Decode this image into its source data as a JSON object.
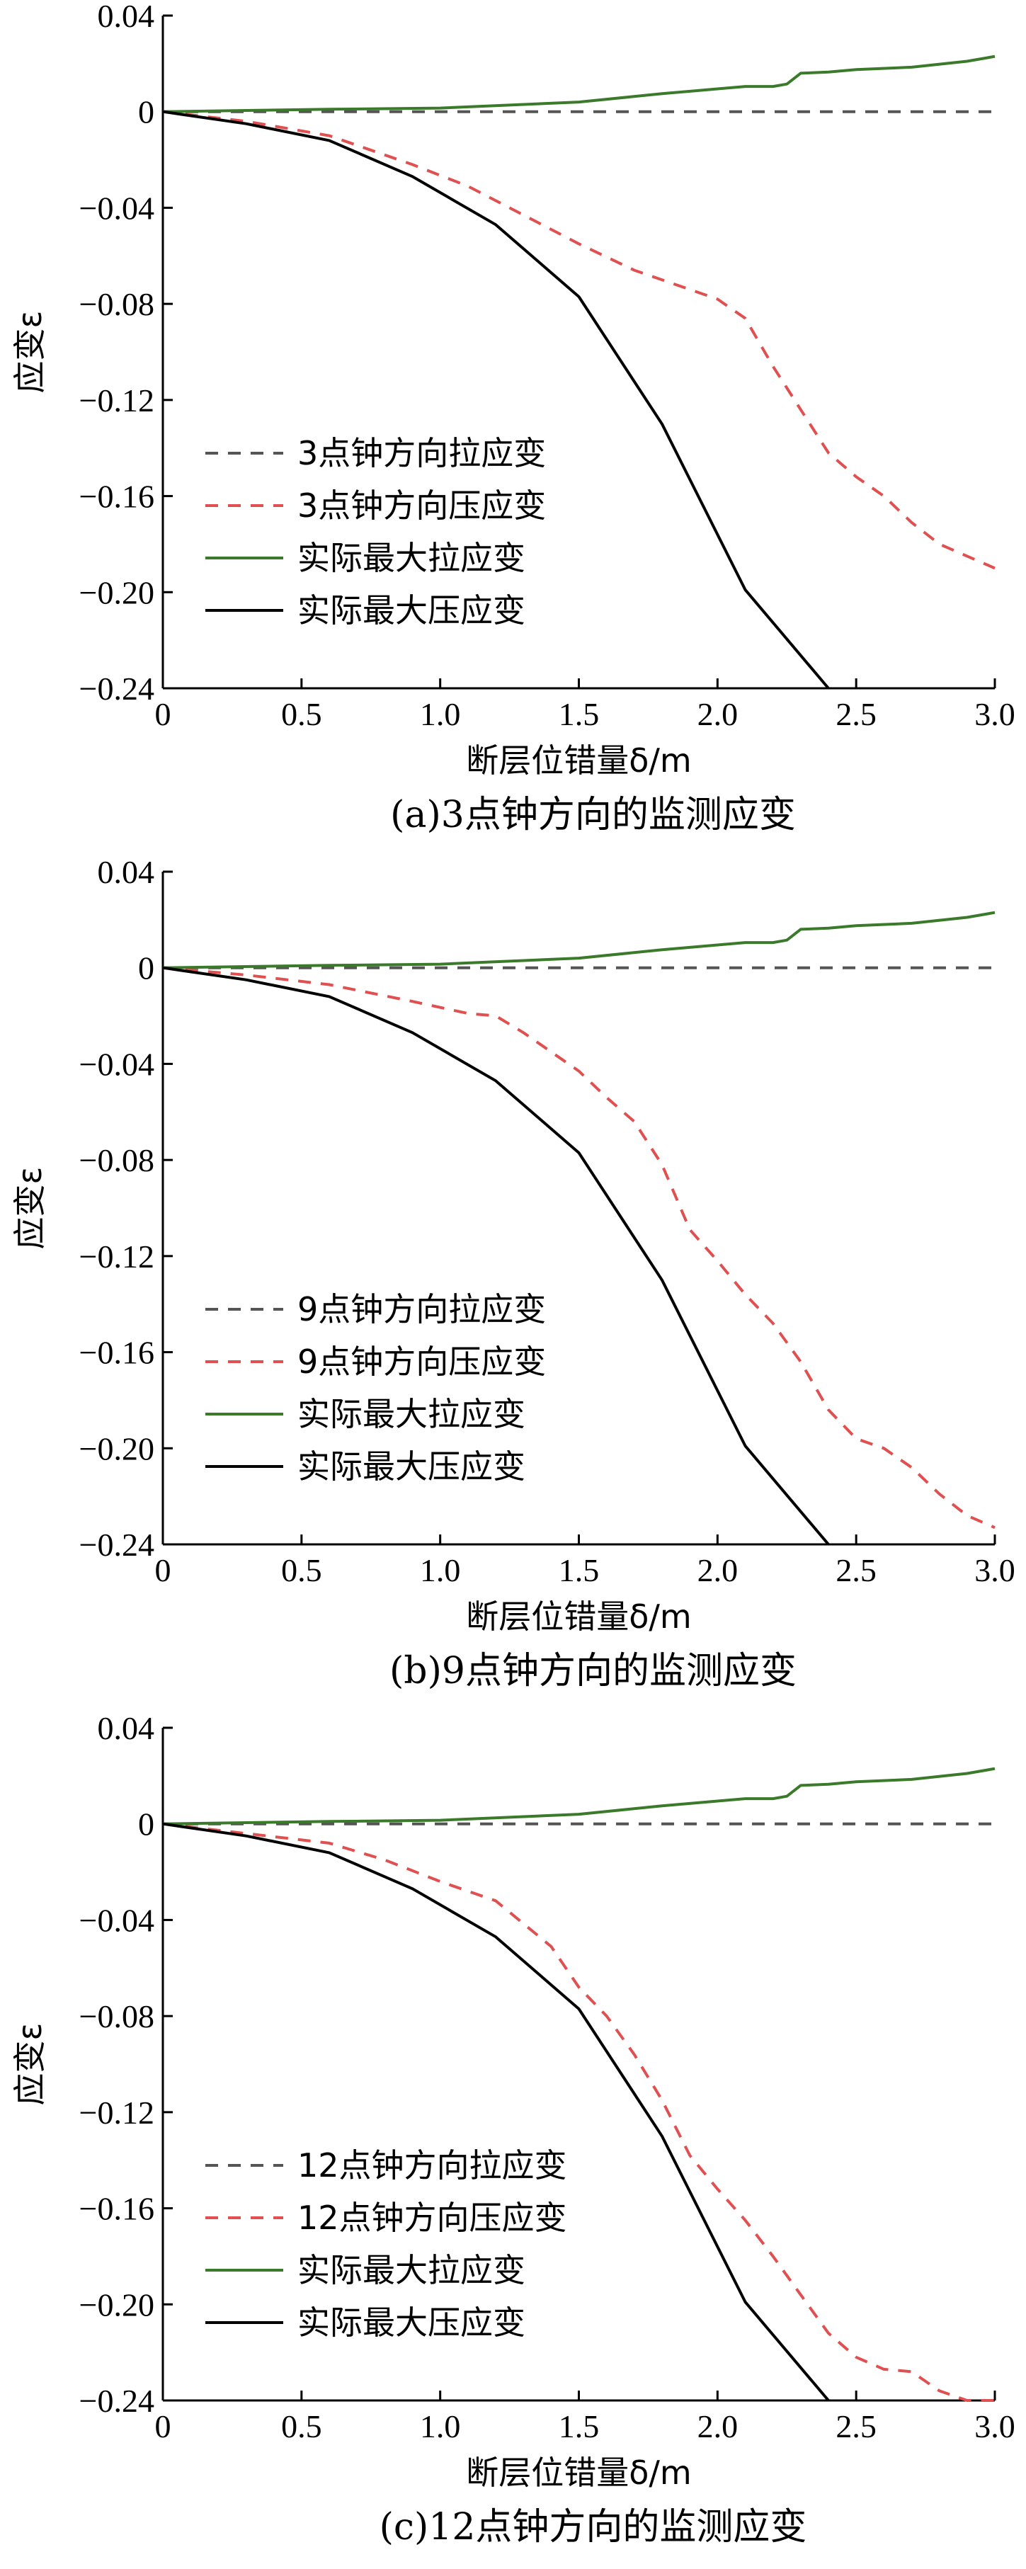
{
  "chart_data": [
    {
      "type": "line",
      "caption": "(a)3点钟方向的监测应变",
      "xlabel": "断层位错量δ/m",
      "ylabel": "应变ε",
      "xlim": [
        0,
        3.0
      ],
      "ylim": [
        -0.24,
        0.04
      ],
      "xticks": [
        "0",
        "0.5",
        "1.0",
        "1.5",
        "2.0",
        "2.5",
        "3.0"
      ],
      "yticks": [
        "0.04",
        "0",
        "−0.04",
        "−0.08",
        "−0.12",
        "−0.16",
        "−0.20",
        "−0.24"
      ],
      "legend_position": "lower-left",
      "series": [
        {
          "name": "3点钟方向拉应变",
          "color": "#555555",
          "style": "dashed",
          "x": [
            0,
            3.0
          ],
          "y": [
            0,
            0
          ]
        },
        {
          "name": "3点钟方向压应变",
          "color": "#e05050",
          "style": "dashed",
          "x": [
            0,
            0.3,
            0.6,
            0.9,
            1.1,
            1.3,
            1.5,
            1.7,
            1.9,
            2.0,
            2.1,
            2.2,
            2.3,
            2.4,
            2.5,
            2.6,
            2.7,
            2.8,
            2.9,
            3.0
          ],
          "y": [
            0,
            -0.004,
            -0.01,
            -0.022,
            -0.031,
            -0.043,
            -0.055,
            -0.066,
            -0.074,
            -0.078,
            -0.086,
            -0.106,
            -0.124,
            -0.142,
            -0.152,
            -0.16,
            -0.171,
            -0.18,
            -0.185,
            -0.19
          ]
        },
        {
          "name": "实际最大拉应变",
          "color": "#3a7a2a",
          "style": "solid",
          "x": [
            0,
            0.6,
            1.0,
            1.5,
            1.8,
            2.0,
            2.1,
            2.2,
            2.25,
            2.3,
            2.4,
            2.5,
            2.7,
            2.9,
            3.0
          ],
          "y": [
            0,
            0.001,
            0.0015,
            0.004,
            0.0075,
            0.0095,
            0.0105,
            0.0105,
            0.0115,
            0.016,
            0.0165,
            0.0175,
            0.0185,
            0.021,
            0.023
          ]
        },
        {
          "name": "实际最大压应变",
          "color": "#000000",
          "style": "solid",
          "x": [
            0,
            0.3,
            0.6,
            0.9,
            1.2,
            1.5,
            1.8,
            2.1,
            2.4
          ],
          "y": [
            0,
            -0.005,
            -0.012,
            -0.027,
            -0.047,
            -0.077,
            -0.13,
            -0.199,
            -0.24
          ]
        }
      ]
    },
    {
      "type": "line",
      "caption": "(b)9点钟方向的监测应变",
      "xlabel": "断层位错量δ/m",
      "ylabel": "应变ε",
      "xlim": [
        0,
        3.0
      ],
      "ylim": [
        -0.24,
        0.04
      ],
      "xticks": [
        "0",
        "0.5",
        "1.0",
        "1.5",
        "2.0",
        "2.5",
        "3.0"
      ],
      "yticks": [
        "0.04",
        "0",
        "−0.04",
        "−0.08",
        "−0.12",
        "−0.16",
        "−0.20",
        "−0.24"
      ],
      "legend_position": "lower-left",
      "series": [
        {
          "name": "9点钟方向拉应变",
          "color": "#555555",
          "style": "dashed",
          "x": [
            0,
            3.0
          ],
          "y": [
            0,
            0
          ]
        },
        {
          "name": "9点钟方向压应变",
          "color": "#e05050",
          "style": "dashed",
          "x": [
            0,
            0.3,
            0.6,
            0.9,
            1.1,
            1.2,
            1.3,
            1.5,
            1.6,
            1.7,
            1.8,
            1.9,
            2.0,
            2.1,
            2.2,
            2.3,
            2.4,
            2.5,
            2.6,
            2.7,
            2.8,
            2.9,
            3.0
          ],
          "y": [
            0,
            -0.003,
            -0.007,
            -0.014,
            -0.019,
            -0.02,
            -0.027,
            -0.043,
            -0.054,
            -0.064,
            -0.082,
            -0.109,
            -0.122,
            -0.136,
            -0.148,
            -0.164,
            -0.184,
            -0.196,
            -0.2,
            -0.208,
            -0.219,
            -0.228,
            -0.233
          ]
        },
        {
          "name": "实际最大拉应变",
          "color": "#3a7a2a",
          "style": "solid",
          "x": [
            0,
            0.6,
            1.0,
            1.5,
            1.8,
            2.0,
            2.1,
            2.2,
            2.25,
            2.3,
            2.4,
            2.5,
            2.7,
            2.9,
            3.0
          ],
          "y": [
            0,
            0.001,
            0.0015,
            0.004,
            0.0075,
            0.0095,
            0.0105,
            0.0105,
            0.0115,
            0.016,
            0.0165,
            0.0175,
            0.0185,
            0.021,
            0.023
          ]
        },
        {
          "name": "实际最大压应变",
          "color": "#000000",
          "style": "solid",
          "x": [
            0,
            0.3,
            0.6,
            0.9,
            1.2,
            1.5,
            1.8,
            2.1,
            2.4
          ],
          "y": [
            0,
            -0.005,
            -0.012,
            -0.027,
            -0.047,
            -0.077,
            -0.13,
            -0.199,
            -0.24
          ]
        }
      ]
    },
    {
      "type": "line",
      "caption": "(c)12点钟方向的监测应变",
      "xlabel": "断层位错量δ/m",
      "ylabel": "应变ε",
      "xlim": [
        0,
        3.0
      ],
      "ylim": [
        -0.24,
        0.04
      ],
      "xticks": [
        "0",
        "0.5",
        "1.0",
        "1.5",
        "2.0",
        "2.5",
        "3.0"
      ],
      "yticks": [
        "0.04",
        "0",
        "−0.04",
        "−0.08",
        "−0.12",
        "−0.16",
        "−0.20",
        "−0.24"
      ],
      "legend_position": "lower-left",
      "series": [
        {
          "name": "12点钟方向拉应变",
          "color": "#555555",
          "style": "dashed",
          "x": [
            0,
            3.0
          ],
          "y": [
            0,
            0
          ]
        },
        {
          "name": "12点钟方向压应变",
          "color": "#e05050",
          "style": "dashed",
          "x": [
            0,
            0.3,
            0.6,
            0.8,
            1.0,
            1.2,
            1.4,
            1.5,
            1.6,
            1.7,
            1.8,
            1.9,
            2.0,
            2.1,
            2.2,
            2.3,
            2.4,
            2.5,
            2.6,
            2.7,
            2.8,
            2.9,
            3.0
          ],
          "y": [
            0,
            -0.004,
            -0.008,
            -0.015,
            -0.024,
            -0.032,
            -0.051,
            -0.068,
            -0.08,
            -0.096,
            -0.115,
            -0.138,
            -0.152,
            -0.165,
            -0.18,
            -0.196,
            -0.212,
            -0.222,
            -0.227,
            -0.228,
            -0.236,
            -0.24,
            -0.24
          ]
        },
        {
          "name": "实际最大拉应变",
          "color": "#3a7a2a",
          "style": "solid",
          "x": [
            0,
            0.6,
            1.0,
            1.5,
            1.8,
            2.0,
            2.1,
            2.2,
            2.25,
            2.3,
            2.4,
            2.5,
            2.7,
            2.9,
            3.0
          ],
          "y": [
            0,
            0.001,
            0.0015,
            0.004,
            0.0075,
            0.0095,
            0.0105,
            0.0105,
            0.0115,
            0.016,
            0.0165,
            0.0175,
            0.0185,
            0.021,
            0.023
          ]
        },
        {
          "name": "实际最大压应变",
          "color": "#000000",
          "style": "solid",
          "x": [
            0,
            0.3,
            0.6,
            0.9,
            1.2,
            1.5,
            1.8,
            2.1,
            2.4
          ],
          "y": [
            0,
            -0.005,
            -0.012,
            -0.027,
            -0.047,
            -0.077,
            -0.13,
            -0.199,
            -0.24
          ]
        }
      ]
    }
  ]
}
